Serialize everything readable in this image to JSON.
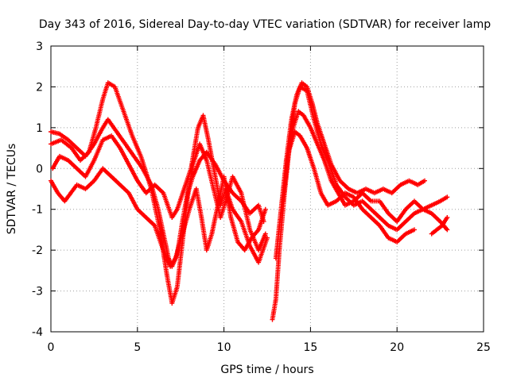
{
  "chart_data": {
    "type": "scatter",
    "title": "Day 343 of 2016, Sidereal Day-to-day VTEC variation (SDTVAR) for receiver lamp",
    "xlabel": "GPS time / hours",
    "ylabel": "SDTVAR / TECUs",
    "xlim": [
      0,
      25
    ],
    "ylim": [
      -4,
      3
    ],
    "xticks": [
      "0",
      "5",
      "10",
      "15",
      "20",
      "25"
    ],
    "yticks": [
      "-4",
      "-3",
      "-2",
      "-1",
      "0",
      "1",
      "2",
      "3"
    ],
    "grid": true,
    "legend": "none",
    "marker": "+",
    "color": "#ff0000",
    "series": [
      {
        "points": [
          [
            0.0,
            0.9
          ],
          [
            0.5,
            0.85
          ],
          [
            1.0,
            0.7
          ],
          [
            1.5,
            0.5
          ],
          [
            2.0,
            0.3
          ],
          [
            2.5,
            0.6
          ],
          [
            3.0,
            1.0
          ],
          [
            3.3,
            1.2
          ],
          [
            3.8,
            0.9
          ],
          [
            4.3,
            0.6
          ],
          [
            4.8,
            0.3
          ],
          [
            5.3,
            0.0
          ],
          [
            5.8,
            -0.4
          ],
          [
            6.2,
            -1.0
          ],
          [
            6.5,
            -1.6
          ],
          [
            6.8,
            -2.2
          ],
          [
            7.0,
            -2.4
          ],
          [
            7.3,
            -2.1
          ],
          [
            7.6,
            -1.3
          ],
          [
            7.9,
            -0.6
          ],
          [
            8.2,
            -0.2
          ],
          [
            8.6,
            0.2
          ],
          [
            9.0,
            0.4
          ],
          [
            9.5,
            0.1
          ],
          [
            10.0,
            -0.3
          ],
          [
            10.5,
            -0.6
          ],
          [
            11.0,
            -0.8
          ],
          [
            11.5,
            -1.1
          ],
          [
            12.0,
            -0.9
          ],
          [
            12.3,
            -1.3
          ]
        ]
      },
      {
        "points": [
          [
            0.0,
            0.6
          ],
          [
            0.6,
            0.7
          ],
          [
            1.2,
            0.5
          ],
          [
            1.7,
            0.2
          ],
          [
            2.2,
            0.4
          ],
          [
            2.6,
            1.0
          ],
          [
            3.0,
            1.7
          ],
          [
            3.3,
            2.1
          ],
          [
            3.7,
            2.0
          ],
          [
            4.2,
            1.4
          ],
          [
            4.7,
            0.8
          ],
          [
            5.2,
            0.3
          ],
          [
            5.8,
            -0.5
          ],
          [
            6.3,
            -1.5
          ],
          [
            6.7,
            -2.6
          ],
          [
            7.0,
            -3.3
          ],
          [
            7.3,
            -2.9
          ],
          [
            7.6,
            -1.8
          ],
          [
            7.9,
            -0.7
          ],
          [
            8.2,
            0.1
          ],
          [
            8.6,
            0.6
          ],
          [
            9.0,
            0.2
          ],
          [
            9.4,
            -0.5
          ],
          [
            9.8,
            -1.2
          ],
          [
            10.1,
            -0.8
          ],
          [
            10.5,
            -0.2
          ],
          [
            11.0,
            -0.6
          ],
          [
            11.5,
            -1.5
          ],
          [
            12.0,
            -2.0
          ],
          [
            12.4,
            -1.6
          ]
        ]
      },
      {
        "points": [
          [
            0.1,
            0.0
          ],
          [
            0.5,
            0.3
          ],
          [
            1.0,
            0.2
          ],
          [
            1.5,
            0.0
          ],
          [
            2.0,
            -0.2
          ],
          [
            2.5,
            0.2
          ],
          [
            3.0,
            0.7
          ],
          [
            3.5,
            0.8
          ],
          [
            4.0,
            0.5
          ],
          [
            4.5,
            0.1
          ],
          [
            5.0,
            -0.3
          ],
          [
            5.5,
            -0.6
          ],
          [
            6.0,
            -0.4
          ],
          [
            6.5,
            -0.6
          ],
          [
            7.0,
            -1.2
          ],
          [
            7.3,
            -1.0
          ],
          [
            7.7,
            -0.5
          ],
          [
            8.1,
            0.0
          ],
          [
            8.5,
            1.0
          ],
          [
            8.8,
            1.3
          ],
          [
            9.1,
            0.7
          ],
          [
            9.5,
            -0.2
          ],
          [
            9.8,
            -0.9
          ],
          [
            10.1,
            -0.5
          ],
          [
            10.5,
            -1.0
          ],
          [
            11.0,
            -1.3
          ],
          [
            11.5,
            -1.9
          ],
          [
            12.0,
            -2.3
          ],
          [
            12.5,
            -1.7
          ]
        ]
      },
      {
        "points": [
          [
            0.0,
            -0.3
          ],
          [
            0.4,
            -0.6
          ],
          [
            0.8,
            -0.8
          ],
          [
            1.5,
            -0.4
          ],
          [
            2.0,
            -0.5
          ],
          [
            2.5,
            -0.3
          ],
          [
            3.0,
            0.0
          ],
          [
            3.5,
            -0.2
          ],
          [
            4.0,
            -0.4
          ],
          [
            4.5,
            -0.6
          ],
          [
            5.0,
            -1.0
          ],
          [
            5.5,
            -1.2
          ],
          [
            6.0,
            -1.4
          ],
          [
            6.5,
            -2.0
          ],
          [
            6.9,
            -2.4
          ],
          [
            7.2,
            -2.2
          ],
          [
            7.6,
            -1.6
          ],
          [
            8.0,
            -1.0
          ],
          [
            8.4,
            -0.5
          ],
          [
            8.7,
            -1.2
          ],
          [
            9.0,
            -2.0
          ],
          [
            9.3,
            -1.6
          ],
          [
            9.7,
            -0.8
          ],
          [
            10.0,
            -0.2
          ],
          [
            10.4,
            -1.2
          ],
          [
            10.8,
            -1.8
          ],
          [
            11.2,
            -2.0
          ],
          [
            11.6,
            -1.7
          ],
          [
            12.0,
            -1.5
          ],
          [
            12.4,
            -1.0
          ]
        ]
      },
      {
        "points": [
          [
            12.8,
            -3.7
          ],
          [
            13.0,
            -3.2
          ],
          [
            13.2,
            -2.0
          ],
          [
            13.5,
            -0.6
          ],
          [
            13.8,
            0.6
          ],
          [
            14.1,
            1.6
          ],
          [
            14.4,
            2.0
          ],
          [
            14.8,
            1.9
          ],
          [
            15.2,
            1.2
          ],
          [
            15.6,
            0.6
          ],
          [
            16.0,
            0.2
          ],
          [
            16.5,
            -0.4
          ],
          [
            17.0,
            -0.7
          ],
          [
            17.5,
            -0.9
          ],
          [
            18.0,
            -0.8
          ],
          [
            18.5,
            -1.0
          ],
          [
            19.0,
            -1.2
          ],
          [
            19.5,
            -1.4
          ],
          [
            20.0,
            -1.5
          ],
          [
            20.5,
            -1.3
          ],
          [
            21.0,
            -1.1
          ],
          [
            21.5,
            -1.0
          ],
          [
            22.0,
            -0.9
          ],
          [
            22.5,
            -0.8
          ],
          [
            22.9,
            -0.7
          ]
        ]
      },
      {
        "points": [
          [
            13.0,
            -2.2
          ],
          [
            13.3,
            -1.0
          ],
          [
            13.6,
            0.2
          ],
          [
            13.9,
            1.2
          ],
          [
            14.2,
            1.8
          ],
          [
            14.5,
            2.1
          ],
          [
            14.8,
            2.0
          ],
          [
            15.1,
            1.6
          ],
          [
            15.4,
            1.1
          ],
          [
            15.8,
            0.6
          ],
          [
            16.2,
            0.1
          ],
          [
            16.7,
            -0.3
          ],
          [
            17.2,
            -0.5
          ],
          [
            17.7,
            -0.6
          ],
          [
            18.2,
            -0.5
          ],
          [
            18.7,
            -0.6
          ],
          [
            19.2,
            -0.5
          ],
          [
            19.7,
            -0.6
          ],
          [
            20.2,
            -0.4
          ],
          [
            20.7,
            -0.3
          ],
          [
            21.2,
            -0.4
          ],
          [
            21.6,
            -0.3
          ]
        ]
      },
      {
        "points": [
          [
            13.4,
            -0.8
          ],
          [
            13.7,
            0.3
          ],
          [
            14.0,
            1.0
          ],
          [
            14.3,
            1.4
          ],
          [
            14.6,
            1.3
          ],
          [
            15.0,
            1.0
          ],
          [
            15.4,
            0.6
          ],
          [
            15.8,
            0.2
          ],
          [
            16.2,
            -0.3
          ],
          [
            16.6,
            -0.6
          ],
          [
            17.0,
            -0.9
          ],
          [
            17.5,
            -0.8
          ],
          [
            18.0,
            -0.6
          ],
          [
            18.5,
            -0.8
          ],
          [
            19.0,
            -0.8
          ],
          [
            19.5,
            -1.1
          ],
          [
            20.0,
            -1.3
          ],
          [
            20.5,
            -1.0
          ],
          [
            21.0,
            -0.8
          ],
          [
            21.5,
            -1.0
          ],
          [
            22.0,
            -1.1
          ],
          [
            22.5,
            -1.3
          ],
          [
            22.9,
            -1.5
          ]
        ]
      },
      {
        "points": [
          [
            13.8,
            0.5
          ],
          [
            14.1,
            0.9
          ],
          [
            14.4,
            0.8
          ],
          [
            14.8,
            0.5
          ],
          [
            15.2,
            0.0
          ],
          [
            15.6,
            -0.6
          ],
          [
            16.0,
            -0.9
          ],
          [
            16.5,
            -0.8
          ],
          [
            17.0,
            -0.6
          ],
          [
            17.5,
            -0.7
          ],
          [
            18.0,
            -1.0
          ],
          [
            18.5,
            -1.2
          ],
          [
            19.0,
            -1.4
          ],
          [
            19.5,
            -1.7
          ],
          [
            20.0,
            -1.8
          ],
          [
            20.5,
            -1.6
          ],
          [
            21.0,
            -1.5
          ]
        ]
      },
      {
        "points": [
          [
            22.0,
            -1.6
          ],
          [
            22.3,
            -1.5
          ],
          [
            22.6,
            -1.4
          ],
          [
            22.9,
            -1.2
          ]
        ]
      }
    ]
  }
}
